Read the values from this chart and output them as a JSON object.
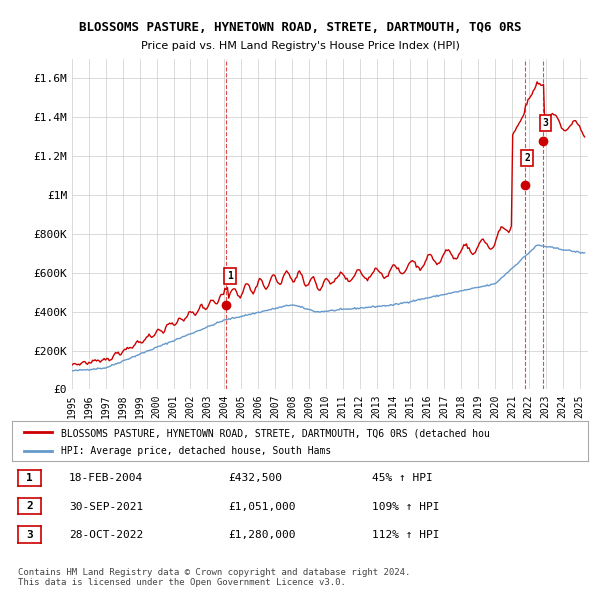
{
  "title": "BLOSSOMS PASTURE, HYNETOWN ROAD, STRETE, DARTMOUTH, TQ6 0RS",
  "subtitle": "Price paid vs. HM Land Registry's House Price Index (HPI)",
  "ylabel_ticks": [
    "£0",
    "£200K",
    "£400K",
    "£600K",
    "£800K",
    "£1M",
    "£1.2M",
    "£1.4M",
    "£1.6M"
  ],
  "ytick_vals": [
    0,
    200000,
    400000,
    600000,
    800000,
    1000000,
    1200000,
    1400000,
    1600000
  ],
  "ylim": [
    0,
    1700000
  ],
  "xlim_start": 1995.0,
  "xlim_end": 2025.5,
  "sale_dates": [
    2004.12,
    2021.75,
    2022.83
  ],
  "sale_prices": [
    432500,
    1051000,
    1280000
  ],
  "sale_labels": [
    "1",
    "2",
    "3"
  ],
  "legend_line1": "BLOSSOMS PASTURE, HYNETOWN ROAD, STRETE, DARTMOUTH, TQ6 0RS (detached hou",
  "legend_line2": "HPI: Average price, detached house, South Hams",
  "table_rows": [
    {
      "num": "1",
      "date": "18-FEB-2004",
      "price": "£432,500",
      "pct": "45% ↑ HPI"
    },
    {
      "num": "2",
      "date": "30-SEP-2021",
      "price": "£1,051,000",
      "pct": "109% ↑ HPI"
    },
    {
      "num": "3",
      "date": "28-OCT-2022",
      "price": "£1,280,000",
      "pct": "112% ↑ HPI"
    }
  ],
  "footnote1": "Contains HM Land Registry data © Crown copyright and database right 2024.",
  "footnote2": "This data is licensed under the Open Government Licence v3.0.",
  "red_color": "#cc0000",
  "blue_color": "#6699cc",
  "background_color": "#ffffff",
  "grid_color": "#cccccc"
}
